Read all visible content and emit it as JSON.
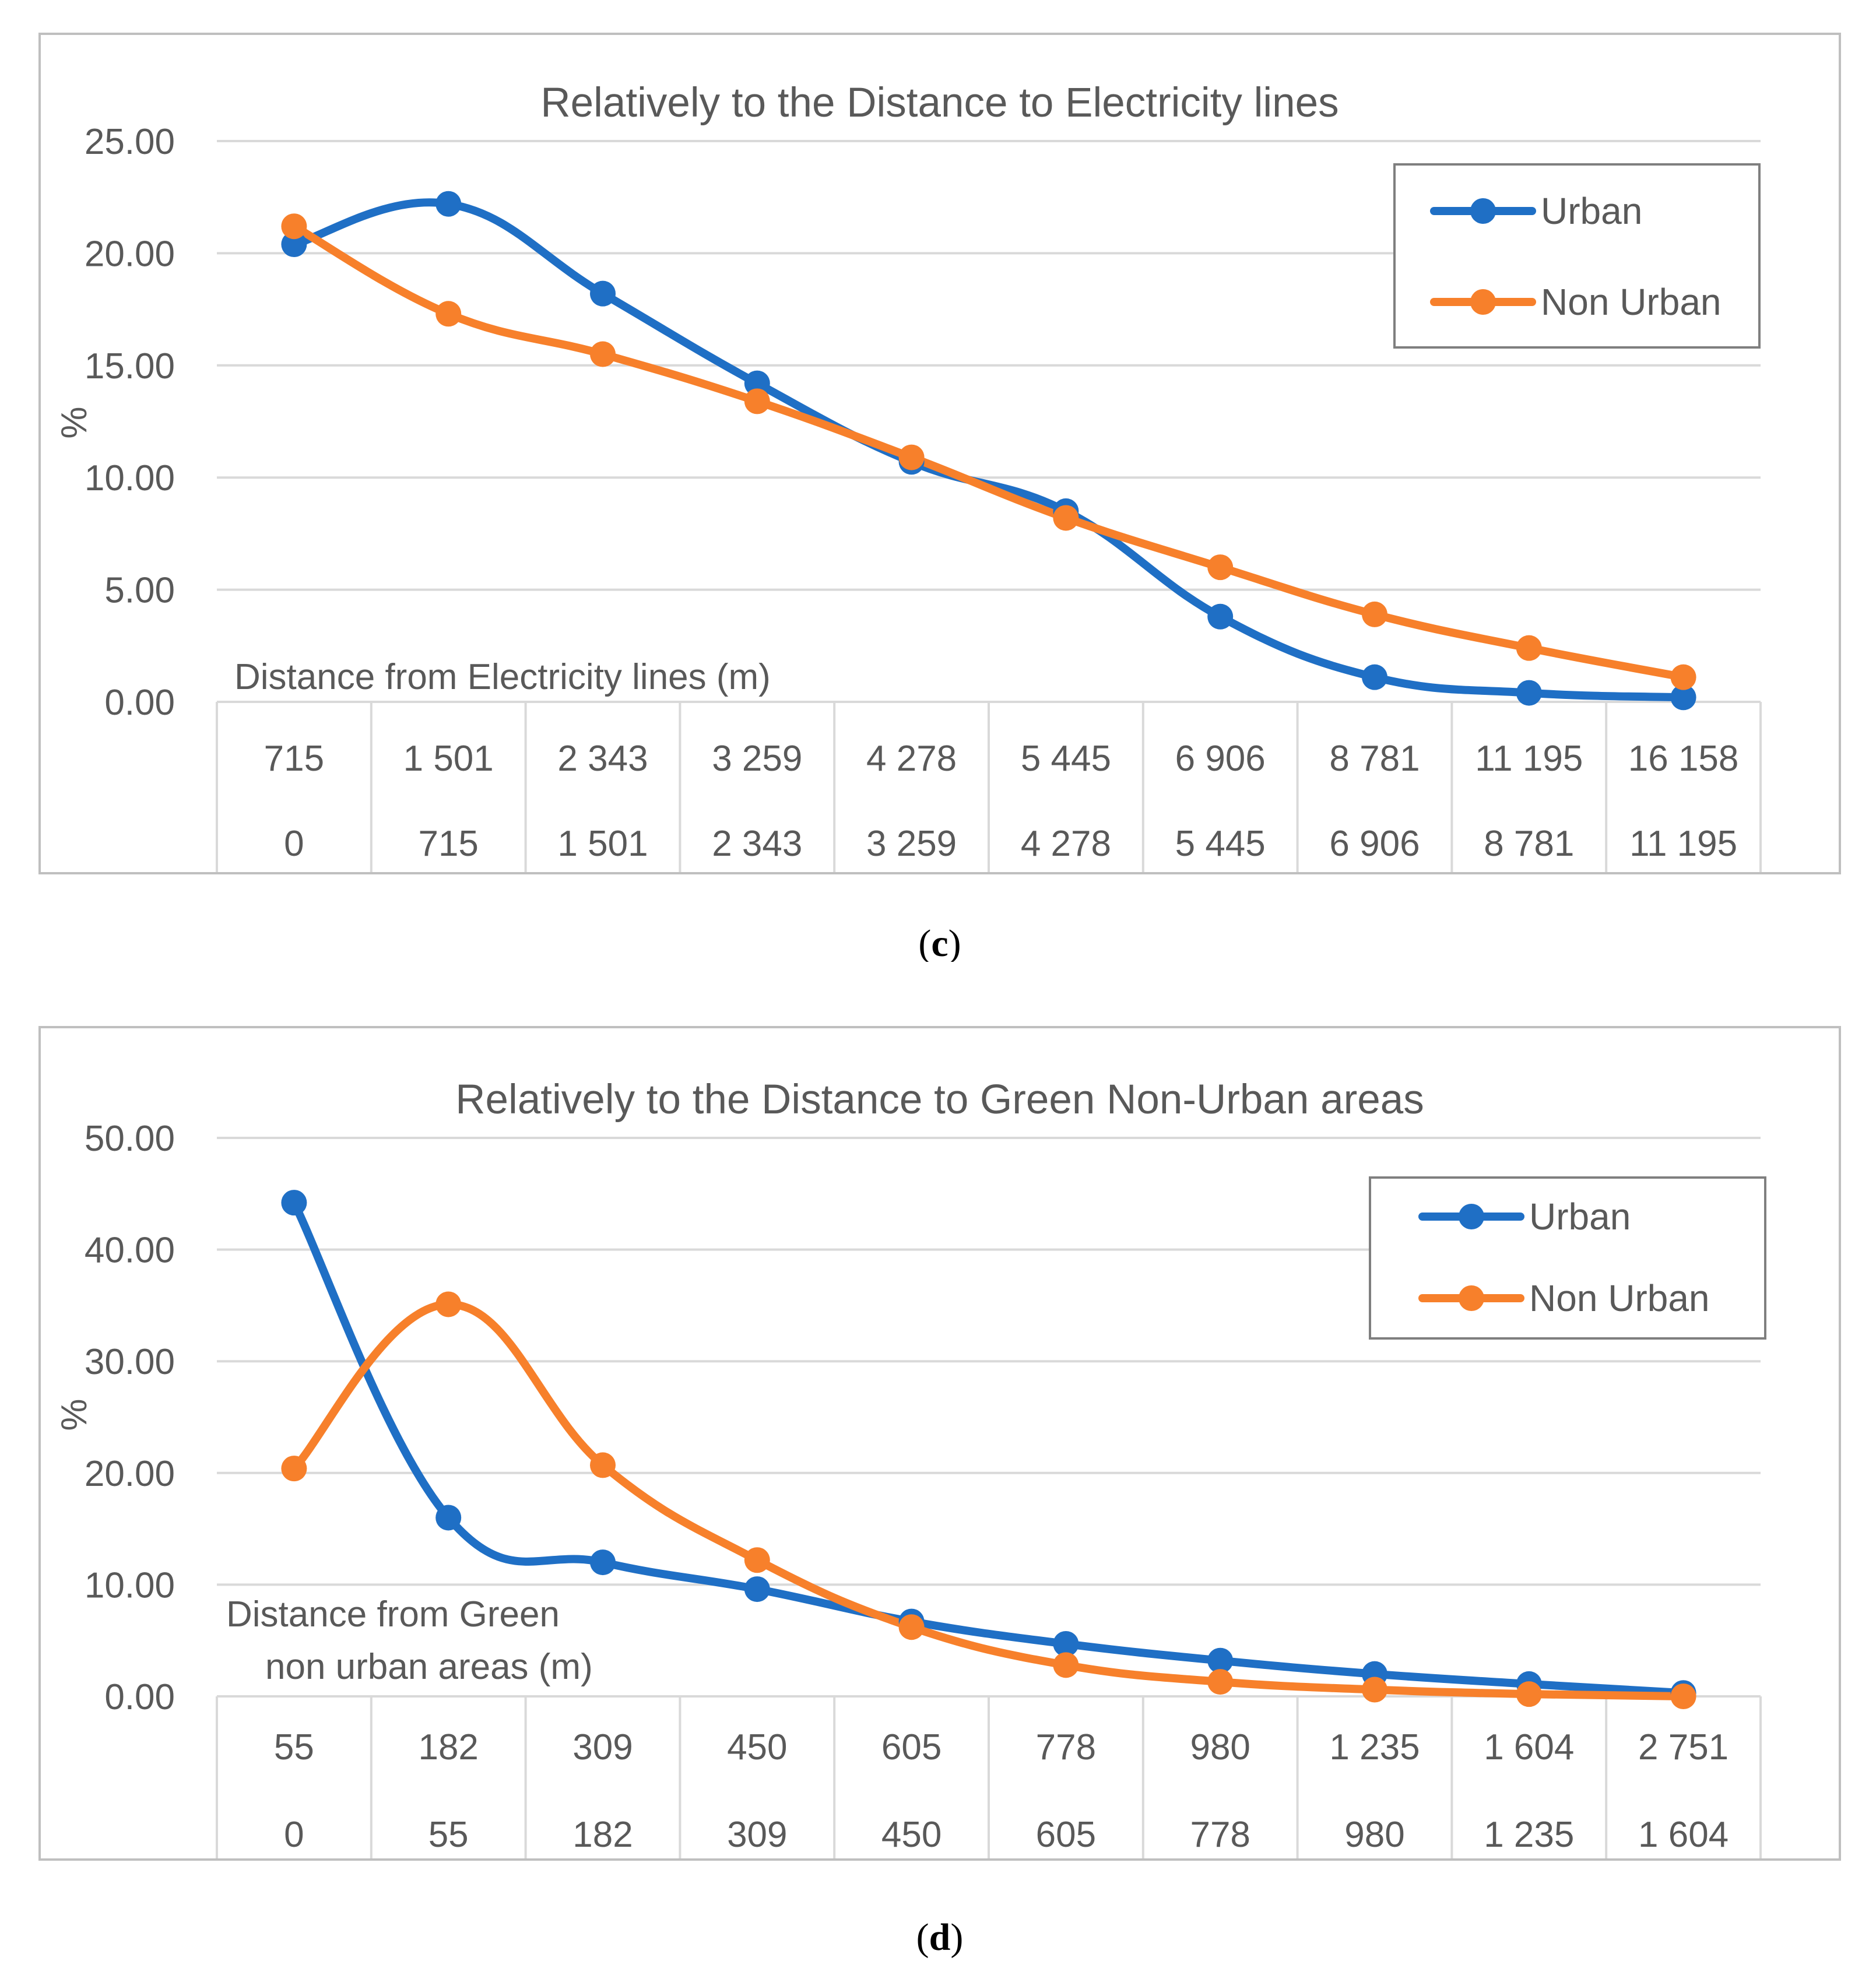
{
  "colors": {
    "urban": "#1f6fc5",
    "non_urban": "#f7802b",
    "grid": "#d9d9d9",
    "text": "#595959",
    "frame": "#bfbfbf",
    "legend_border": "#7f7f7f"
  },
  "chart_data": [
    {
      "id": "c",
      "type": "line",
      "title": "Relatively to the Distance to Electricity lines",
      "ylabel": "%",
      "xlabel": "Distance from Electricity lines (m)",
      "ylim": [
        0,
        25
      ],
      "yticks": [
        "25.00",
        "20.00",
        "15.00",
        "10.00",
        "5.00",
        "0.00"
      ],
      "categories_upper": [
        "715",
        "1 501",
        "2 343",
        "3 259",
        "4 278",
        "5 445",
        "6 906",
        "8 781",
        "11 195",
        "16 158"
      ],
      "categories_lower": [
        "0",
        "715",
        "1 501",
        "2 343",
        "3 259",
        "4 278",
        "5 445",
        "6 906",
        "8 781",
        "11 195"
      ],
      "series": [
        {
          "name": "Urban",
          "values": [
            20.4,
            22.2,
            18.2,
            14.2,
            10.7,
            8.5,
            3.8,
            1.1,
            0.4,
            0.2
          ]
        },
        {
          "name": "Non Urban",
          "values": [
            21.2,
            17.3,
            15.5,
            13.4,
            10.9,
            8.2,
            6.0,
            3.9,
            2.4,
            1.1
          ]
        }
      ],
      "legend_position": "top-right",
      "caption_label": "c"
    },
    {
      "id": "d",
      "type": "line",
      "title": "Relatively to the Distance to Green Non-Urban areas",
      "ylabel": "%",
      "xlabel_lines": [
        "Distance from Green",
        "non urban areas (m)"
      ],
      "ylim": [
        0,
        50
      ],
      "yticks": [
        "50.00",
        "40.00",
        "30.00",
        "20.00",
        "10.00",
        "0.00"
      ],
      "categories_upper": [
        "55",
        "182",
        "309",
        "450",
        "605",
        "778",
        "980",
        "1 235",
        "1 604",
        "2 751"
      ],
      "categories_lower": [
        "0",
        "55",
        "182",
        "309",
        "450",
        "605",
        "778",
        "980",
        "1 235",
        "1 604"
      ],
      "series": [
        {
          "name": "Urban",
          "values": [
            44.2,
            16.0,
            12.0,
            9.6,
            6.7,
            4.7,
            3.2,
            2.0,
            1.1,
            0.3
          ]
        },
        {
          "name": "Non Urban",
          "values": [
            20.4,
            35.1,
            20.7,
            12.2,
            6.2,
            2.8,
            1.3,
            0.6,
            0.2,
            0.0
          ]
        }
      ],
      "legend_position": "top-right",
      "caption_label": "d"
    }
  ]
}
